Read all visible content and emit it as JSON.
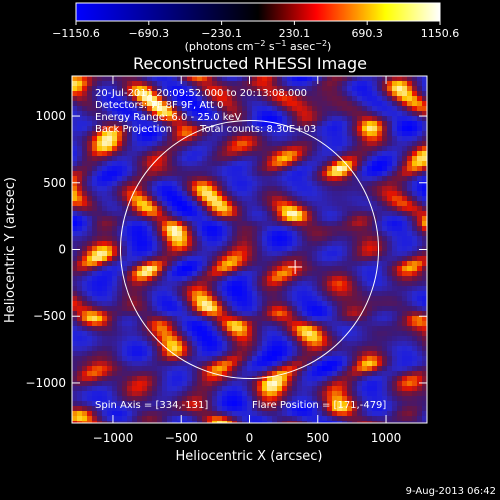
{
  "chart_data": {
    "type": "heatmap",
    "title": "Reconstructed RHESSI Image",
    "xlabel": "Heliocentric X (arcsec)",
    "ylabel": "Heliocentric Y (arcsec)",
    "xlim": [
      -1300,
      1300
    ],
    "ylim": [
      -1300,
      1300
    ],
    "x_ticks": [
      -1000,
      -500,
      0,
      500,
      1000
    ],
    "x_tick_labels": [
      "−1000",
      "−500",
      "0",
      "500",
      "1000"
    ],
    "y_ticks": [
      1000,
      500,
      0,
      -500,
      -1000
    ],
    "y_tick_labels": [
      "1000",
      "500",
      "0",
      "−500",
      "−1000"
    ],
    "colorbar": {
      "range": [
        -1150.6,
        1150.6
      ],
      "ticks": [
        -1150.6,
        -690.3,
        -230.1,
        230.1,
        690.3,
        1150.6
      ],
      "tick_labels": [
        "−1150.6",
        "−690.3",
        "−230.1",
        "230.1",
        "690.3",
        "1150.6"
      ],
      "units_prefix": "(photons cm",
      "units_exp1": "−2",
      "units_mid": " s",
      "units_exp2": "−1",
      "units_mid2": " asec",
      "units_exp3": "−2",
      "units_suffix": ")",
      "colors": [
        "#0000ff",
        "#000000",
        "#ff0000",
        "#ffff00",
        "#ffffff"
      ]
    },
    "solar_limb_radius": 945,
    "flare_marker": [
      334,
      -131
    ],
    "annotations": {
      "time_range": "20-Jul-2011 20:09:52.000 to 20:13:08.000",
      "detectors": "Detectors: 7F 8F 9F, Att 0",
      "energy_range": "Energy Range: 6.0 - 25.0 keV",
      "method": "Back Projection",
      "total_counts": "Total counts: 8.30E+03",
      "spin_axis": "Spin Axis = [334,-131]",
      "flare_position": "Flare Position = [171,-479]"
    },
    "footer_date": "9-Aug-2013 06:42"
  }
}
